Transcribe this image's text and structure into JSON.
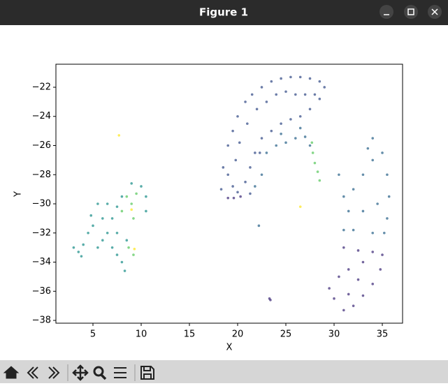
{
  "window": {
    "title": "Figure 1"
  },
  "chart_data": {
    "type": "scatter",
    "xlabel": "X",
    "ylabel": "Y",
    "xlim": [
      1.16,
      37.1
    ],
    "ylim": [
      -38.19,
      -20.42
    ],
    "xticks": [
      5,
      10,
      15,
      20,
      25,
      30,
      35
    ],
    "yticks": [
      {
        "value": -38,
        "label": "−38"
      },
      {
        "value": -36,
        "label": "−36"
      },
      {
        "value": -34,
        "label": "−34"
      },
      {
        "value": -32,
        "label": "−32"
      },
      {
        "value": -30,
        "label": "−30"
      },
      {
        "value": -28,
        "label": "−28"
      },
      {
        "value": -26,
        "label": "−26"
      },
      {
        "value": -24,
        "label": "−24"
      },
      {
        "value": -22,
        "label": "−22"
      }
    ],
    "series": [
      {
        "color": "#3b528b",
        "x": [
          18.3,
          18.5,
          19,
          19.5,
          20,
          20.8,
          21.5,
          22.5,
          23.5,
          24.5,
          25.5,
          26.5,
          27.5,
          28.5,
          29,
          28.5,
          27.5,
          26.5,
          25.5,
          24.5,
          23.5,
          22.5,
          21.8,
          21.3,
          20.8,
          19.5,
          19.8,
          20.2,
          21,
          22,
          23,
          24,
          25,
          26,
          27,
          28,
          19,
          20,
          21.3,
          22.3
        ],
        "y": [
          -29,
          -27.5,
          -26,
          -25,
          -24,
          -23,
          -22.5,
          -22,
          -21.6,
          -21.4,
          -21.3,
          -21.3,
          -21.4,
          -21.6,
          -22,
          -22.8,
          -23.5,
          -24,
          -24.2,
          -24.5,
          -25,
          -25.5,
          -26.5,
          -27.5,
          -28.5,
          -28.8,
          -27,
          -25.8,
          -24.5,
          -23.5,
          -23,
          -22.5,
          -22.3,
          -22.5,
          -22.5,
          -22.5,
          -28,
          -29.2,
          -29.3,
          -26.5
        ]
      },
      {
        "color": "#31688e",
        "x": [
          23,
          24,
          25,
          26,
          27,
          27.5,
          22.5,
          21.8,
          24.5,
          26.5,
          34,
          35,
          35.5,
          35.7,
          35.5,
          35.2,
          34,
          33,
          32,
          31,
          30.5,
          31.5,
          33,
          34.5,
          32,
          34,
          31,
          33.5,
          22.2
        ],
        "y": [
          -26.5,
          -26,
          -25.8,
          -25.5,
          -25.4,
          -26,
          -28,
          -28.8,
          -25.2,
          -24.8,
          -25.5,
          -26.5,
          -28,
          -29.5,
          -31,
          -32,
          -27,
          -28,
          -29,
          -29.5,
          -28,
          -30.5,
          -30.5,
          -30,
          -31.8,
          -32,
          -31.8,
          -26.2,
          -31.5
        ]
      },
      {
        "color": "#46337e",
        "x": [
          31,
          32.5,
          34,
          35,
          34.8,
          34,
          33,
          32,
          31,
          30,
          29.5,
          30.5,
          31.5,
          32.5,
          33,
          31.5,
          19,
          19.6,
          20.3,
          23.3,
          23.4
        ],
        "y": [
          -33,
          -33.2,
          -33.3,
          -33.5,
          -34.5,
          -35.5,
          -36.3,
          -37,
          -37.3,
          -36.5,
          -35.8,
          -35,
          -34.5,
          -35.2,
          -34,
          -36.2,
          -29.6,
          -29.6,
          -29.5,
          -36.5,
          -36.6
        ]
      },
      {
        "color": "#21918c",
        "x": [
          3,
          3.5,
          3.8,
          4,
          4.5,
          5,
          4.8,
          5.5,
          6.5,
          6,
          6.5,
          7,
          7.5,
          8,
          8.3,
          5.5,
          6,
          7,
          7.5,
          8,
          9,
          10,
          10.5,
          10.5,
          8.5,
          7.5
        ],
        "y": [
          -33,
          -33.3,
          -33.6,
          -32.8,
          -32,
          -31.5,
          -30.8,
          -30,
          -30,
          -31,
          -32,
          -33,
          -33.5,
          -34,
          -34.6,
          -33,
          -32.5,
          -31,
          -30.2,
          -29.5,
          -28.6,
          -28.8,
          -29.5,
          -30.5,
          -32.5,
          -32
        ]
      },
      {
        "color": "#5ec962",
        "x": [
          8.5,
          9,
          9.5,
          8,
          9.2,
          8.7,
          9.2,
          27.8,
          28,
          28.3,
          28.5,
          27.7
        ],
        "y": [
          -29.5,
          -30,
          -29.3,
          -30.5,
          -31,
          -33,
          -33.5,
          -26.5,
          -27.2,
          -27.8,
          -28.4,
          -25.8
        ]
      },
      {
        "color": "#fde725",
        "x": [
          7.7,
          26.5,
          9,
          9.3
        ],
        "y": [
          -25.3,
          -30.2,
          -30.4,
          -33.1
        ]
      }
    ]
  }
}
